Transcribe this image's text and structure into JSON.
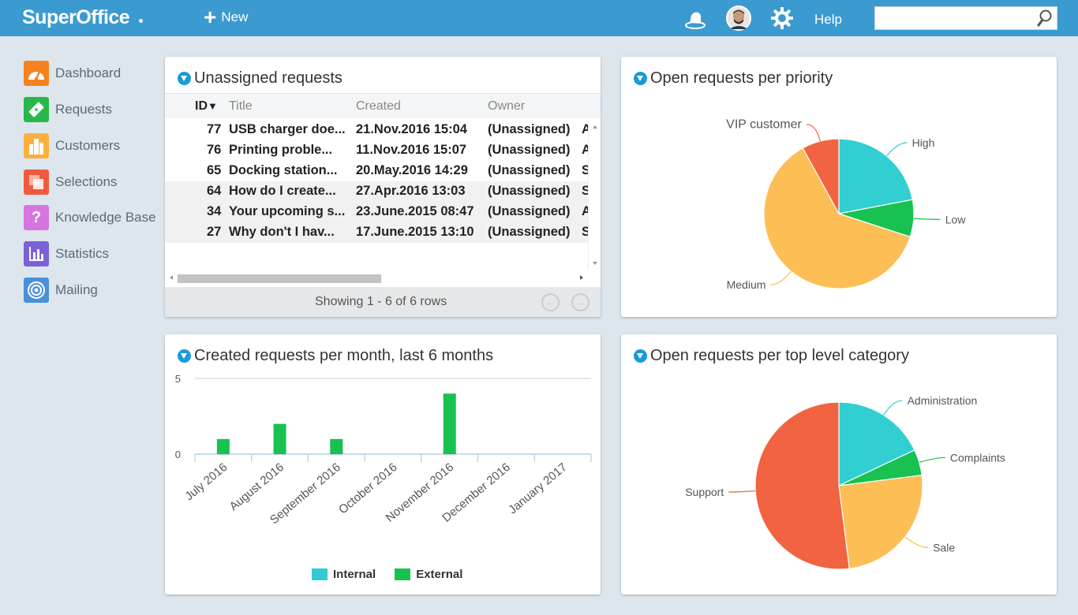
{
  "app": {
    "logo": "SuperOffice",
    "new_label": "New",
    "help_label": "Help",
    "search_placeholder": ""
  },
  "sidebar": {
    "items": [
      {
        "label": "Dashboard",
        "color": "#f4831f",
        "icon": "speedometer-icon"
      },
      {
        "label": "Requests",
        "color": "#28b849",
        "icon": "ticket-icon"
      },
      {
        "label": "Customers",
        "color": "#fbb040",
        "icon": "buildings-icon"
      },
      {
        "label": "Selections",
        "color": "#f15a40",
        "icon": "selection-icon"
      },
      {
        "label": "Knowledge Base",
        "color": "#d874e0",
        "icon": "question-icon"
      },
      {
        "label": "Statistics",
        "color": "#7b61d6",
        "icon": "bar-chart-icon"
      },
      {
        "label": "Mailing",
        "color": "#4a90d9",
        "icon": "target-icon"
      }
    ]
  },
  "unassigned": {
    "title": "Unassigned requests",
    "columns": {
      "id": "ID",
      "title": "Title",
      "created": "Created",
      "owner": "Owner"
    },
    "rows": [
      {
        "id": "77",
        "title": "USB charger doe...",
        "created": "21.Nov.2016 15:04",
        "owner": "(Unassigned)",
        "extra": "A"
      },
      {
        "id": "76",
        "title": "Printing proble...",
        "created": "11.Nov.2016 15:07",
        "owner": "(Unassigned)",
        "extra": "A"
      },
      {
        "id": "65",
        "title": "Docking station...",
        "created": "20.May.2016 14:29",
        "owner": "(Unassigned)",
        "extra": "S"
      },
      {
        "id": "64",
        "title": "How do I create...",
        "created": "27.Apr.2016 13:03",
        "owner": "(Unassigned)",
        "extra": "S"
      },
      {
        "id": "34",
        "title": "Your upcoming s...",
        "created": "23.June.2015 08:47",
        "owner": "(Unassigned)",
        "extra": "A"
      },
      {
        "id": "27",
        "title": "Why don't I hav...",
        "created": "17.June.2015 13:10",
        "owner": "(Unassigned)",
        "extra": "S"
      }
    ],
    "footer": "Showing 1 - 6 of 6 rows"
  },
  "priority_panel": {
    "title": "Open requests per priority"
  },
  "monthly_panel": {
    "title": "Created requests per month, last 6 months"
  },
  "category_panel": {
    "title": "Open requests per top level category"
  },
  "chart_data": [
    {
      "type": "pie",
      "title": "Open requests per priority",
      "labels": [
        "High",
        "Low",
        "Medium",
        "VIP customer"
      ],
      "values": [
        22,
        8,
        62,
        8
      ],
      "colors": [
        "#31cfd2",
        "#18c150",
        "#fdbe55",
        "#f16341"
      ]
    },
    {
      "type": "bar",
      "title": "Created requests per month, last 6 months",
      "categories": [
        "July 2016",
        "August 2016",
        "September 2016",
        "October 2016",
        "November 2016",
        "December 2016",
        "January 2017"
      ],
      "series": [
        {
          "name": "Internal",
          "color": "#35c9d5",
          "values": [
            0,
            0,
            0,
            0,
            0,
            0,
            0
          ]
        },
        {
          "name": "External",
          "color": "#18c150",
          "values": [
            1,
            2,
            1,
            0,
            4,
            0,
            0
          ]
        }
      ],
      "yticks": [
        "0",
        "5"
      ],
      "ylim": [
        0,
        5
      ],
      "legend": "bottom"
    },
    {
      "type": "pie",
      "title": "Open requests per top level category",
      "labels": [
        "Administration",
        "Complaints",
        "Sale",
        "Support"
      ],
      "values": [
        18,
        5,
        25,
        52
      ],
      "colors": [
        "#31cfd2",
        "#18c150",
        "#fdbe55",
        "#f16341"
      ]
    }
  ]
}
